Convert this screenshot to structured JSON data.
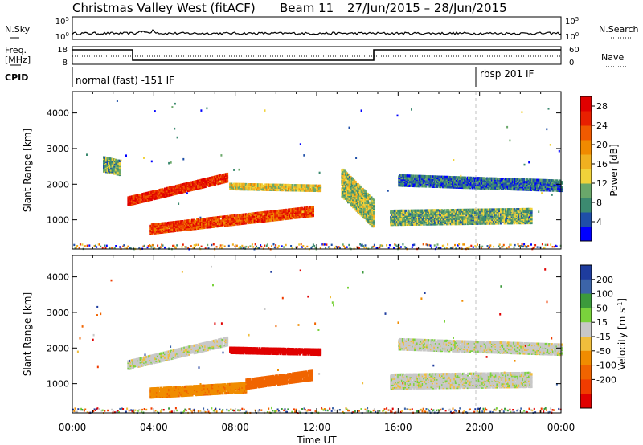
{
  "header": {
    "title": "Christmas Valley West (fitACF)",
    "beam": "Beam 11",
    "dates": "27/Jun/2015 – 28/Jun/2015"
  },
  "strip_labels": {
    "nsky": "N.Sky",
    "nsearch": "N.Search",
    "freq_line1": "Freq.",
    "freq_line2": "[MHz]",
    "nave": "Nave",
    "cpid": "CPID"
  },
  "strip_ticks": {
    "nsky_top": "10^5",
    "nsky_bottom": "10^0",
    "nsearch_top": "10^5",
    "nsearch_bottom": "10^0",
    "freq_top": "18",
    "freq_bottom": "8",
    "nave_top": "60",
    "nave_bottom": "0"
  },
  "cpid": {
    "left": "normal (fast) -151 IF",
    "right": "rbsp 201 IF"
  },
  "colors": {
    "scale": [
      "#0000ff",
      "#1f4fa8",
      "#3c8a70",
      "#6aa86a",
      "#f0d23a",
      "#f0b020",
      "#f08a00",
      "#f05a00",
      "#e82000",
      "#e00000"
    ],
    "velocity": [
      "#1e3c9e",
      "#3c64a8",
      "#3c9a3c",
      "#7ad23c",
      "#c8c8c8",
      "#f0be3c",
      "#f08c00",
      "#f06400",
      "#f03c00",
      "#e00000"
    ]
  },
  "chart_data": [
    {
      "type": "heatmap",
      "title": "Christmas Valley West (fitACF) Beam 11 27/Jun/2015 – 28/Jun/2015",
      "xlabel": "Time UT",
      "ylabel": "Slant Range [km]",
      "xticks": [
        "00:00",
        "04:00",
        "08:00",
        "12:00",
        "16:00",
        "20:00",
        "00:00"
      ],
      "xlim_hours": [
        0,
        24
      ],
      "ylim": [
        180,
        4600
      ],
      "yticks": [
        1000,
        2000,
        3000,
        4000
      ],
      "colorbar_label": "Power [dB]",
      "colorbar_ticks": [
        "4",
        "8",
        "12",
        "16",
        "20",
        "24",
        "28"
      ],
      "colorbar_range": [
        0,
        30
      ],
      "regions": [
        {
          "t0": 2.7,
          "t1": 7.6,
          "r0": 1450,
          "r1": 1680,
          "r1end": 2350,
          "level": 26
        },
        {
          "t0": 3.8,
          "t1": 11.8,
          "r0": 650,
          "r1": 900,
          "r1end": 1400,
          "level": 24
        },
        {
          "t0": 7.7,
          "t1": 12.2,
          "r0": 1900,
          "r1": 2050,
          "r1end": 2000,
          "level": 14
        },
        {
          "t0": 13.2,
          "t1": 14.8,
          "r0": 1700,
          "r1": 2500,
          "r1end": 1600,
          "level": 12
        },
        {
          "t0": 15.6,
          "t1": 22.5,
          "r0": 900,
          "r1": 1300,
          "r1end": 1350,
          "level": 10
        },
        {
          "t0": 16.0,
          "t1": 24.0,
          "r0": 2000,
          "r1": 2300,
          "r1end": 2150,
          "level": 6
        },
        {
          "t0": 1.5,
          "t1": 2.3,
          "r0": 2400,
          "r1": 2800,
          "r1end": 2700,
          "level": 10
        }
      ]
    },
    {
      "type": "heatmap",
      "xlabel": "Time UT",
      "ylabel": "Slant Range [km]",
      "xticks": [
        "00:00",
        "04:00",
        "08:00",
        "12:00",
        "16:00",
        "20:00",
        "00:00"
      ],
      "xlim_hours": [
        0,
        24
      ],
      "ylim": [
        180,
        4600
      ],
      "yticks": [
        1000,
        2000,
        3000,
        4000
      ],
      "colorbar_label": "Velocity [m s^-1]",
      "colorbar_ticks": [
        "200",
        "100",
        "50",
        "15",
        "-15",
        "-50",
        "-100",
        "-200"
      ],
      "regions": [
        {
          "t0": 2.7,
          "t1": 7.6,
          "r0": 1450,
          "r1": 1680,
          "r1end": 2350,
          "velocity": 0
        },
        {
          "t0": 3.8,
          "t1": 8.5,
          "r0": 650,
          "r1": 900,
          "r1end": 1050,
          "velocity": -60
        },
        {
          "t0": 8.5,
          "t1": 11.8,
          "r0": 900,
          "r1": 1150,
          "r1end": 1400,
          "velocity": -120
        },
        {
          "t0": 7.7,
          "t1": 12.2,
          "r0": 1900,
          "r1": 2050,
          "r1end": 2000,
          "velocity": -220
        },
        {
          "t0": 15.6,
          "t1": 22.5,
          "r0": 900,
          "r1": 1300,
          "r1end": 1350,
          "velocity": 0
        },
        {
          "t0": 16.0,
          "t1": 24.0,
          "r0": 2000,
          "r1": 2300,
          "r1end": 2150,
          "velocity": 0
        }
      ]
    }
  ]
}
